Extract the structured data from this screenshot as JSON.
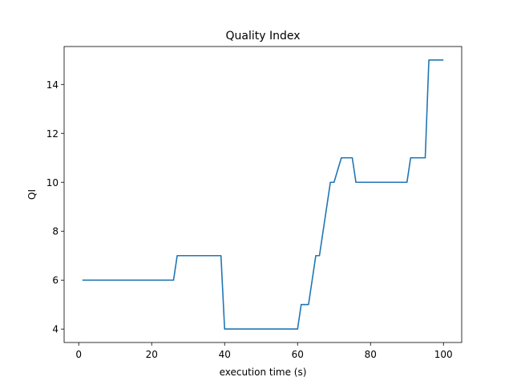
{
  "chart_data": {
    "type": "line",
    "title": "Quality Index",
    "xlabel": "execution time (s)",
    "ylabel": "QI",
    "xlim": [
      -4,
      105
    ],
    "ylim": [
      3.45,
      15.55
    ],
    "xticks": [
      0,
      20,
      40,
      60,
      80,
      100
    ],
    "yticks": [
      4,
      6,
      8,
      10,
      12,
      14
    ],
    "grid": false,
    "line_color": "#1f77b4",
    "series": [
      {
        "x": [
          1,
          26,
          27,
          39,
          40,
          60,
          61,
          63,
          65,
          66,
          69,
          70,
          72,
          75,
          76,
          90,
          91,
          95,
          96,
          100
        ],
        "y": [
          6,
          6,
          7,
          7,
          4,
          4,
          5,
          5,
          7,
          7,
          10,
          10,
          11,
          11,
          10,
          10,
          11,
          11,
          15,
          15
        ]
      }
    ]
  }
}
